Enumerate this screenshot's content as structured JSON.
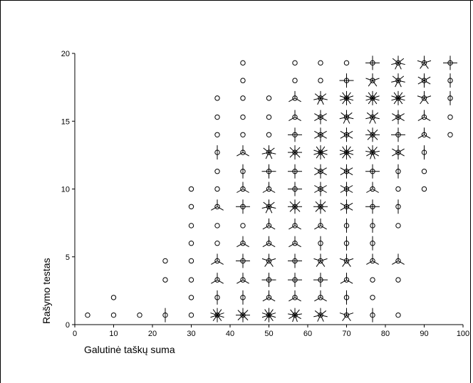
{
  "chart_data": {
    "type": "scatter",
    "title": "",
    "xlabel": "Galutinė taškų suma",
    "ylabel": "Rašymo testas",
    "xlim": [
      0,
      100
    ],
    "ylim": [
      0,
      20
    ],
    "x_ticks": [
      0,
      10,
      20,
      30,
      40,
      50,
      60,
      70,
      80,
      90,
      100
    ],
    "y_ticks": [
      0,
      5,
      10,
      15,
      20
    ],
    "grid": false,
    "legend": "none",
    "marker_style": "sunflower",
    "marker_note": "each open circle is a point; each petal line adds one more observation",
    "color": "#000000",
    "points": [
      {
        "x": 3.3,
        "y": 0.7,
        "n": 1
      },
      {
        "x": 10,
        "y": 0.7,
        "n": 1
      },
      {
        "x": 16.7,
        "y": 0.7,
        "n": 1
      },
      {
        "x": 23.3,
        "y": 0.7,
        "n": 2
      },
      {
        "x": 30,
        "y": 0.7,
        "n": 1
      },
      {
        "x": 36.7,
        "y": 0.7,
        "n": 10
      },
      {
        "x": 43.3,
        "y": 0.7,
        "n": 8
      },
      {
        "x": 50,
        "y": 0.7,
        "n": 10
      },
      {
        "x": 56.7,
        "y": 0.7,
        "n": 9
      },
      {
        "x": 63.3,
        "y": 0.7,
        "n": 7
      },
      {
        "x": 70,
        "y": 0.7,
        "n": 5
      },
      {
        "x": 76.7,
        "y": 0.7,
        "n": 2
      },
      {
        "x": 83.3,
        "y": 0.7,
        "n": 1
      },
      {
        "x": 10,
        "y": 2,
        "n": 1
      },
      {
        "x": 30,
        "y": 2,
        "n": 1
      },
      {
        "x": 36.7,
        "y": 2,
        "n": 2
      },
      {
        "x": 43.3,
        "y": 2,
        "n": 2
      },
      {
        "x": 50,
        "y": 2,
        "n": 3
      },
      {
        "x": 56.7,
        "y": 2,
        "n": 3
      },
      {
        "x": 63.3,
        "y": 2,
        "n": 3
      },
      {
        "x": 70,
        "y": 2,
        "n": 2
      },
      {
        "x": 76.7,
        "y": 2,
        "n": 1
      },
      {
        "x": 23.3,
        "y": 3.3,
        "n": 1
      },
      {
        "x": 30,
        "y": 3.3,
        "n": 1
      },
      {
        "x": 36.7,
        "y": 3.3,
        "n": 3
      },
      {
        "x": 43.3,
        "y": 3.3,
        "n": 3
      },
      {
        "x": 50,
        "y": 3.3,
        "n": 4
      },
      {
        "x": 56.7,
        "y": 3.3,
        "n": 4
      },
      {
        "x": 63.3,
        "y": 3.3,
        "n": 4
      },
      {
        "x": 70,
        "y": 3.3,
        "n": 3
      },
      {
        "x": 76.7,
        "y": 3.3,
        "n": 1
      },
      {
        "x": 83.3,
        "y": 3.3,
        "n": 1
      },
      {
        "x": 23.3,
        "y": 4.7,
        "n": 1
      },
      {
        "x": 30,
        "y": 4.7,
        "n": 1
      },
      {
        "x": 36.7,
        "y": 4.7,
        "n": 3
      },
      {
        "x": 43.3,
        "y": 4.7,
        "n": 4
      },
      {
        "x": 50,
        "y": 4.7,
        "n": 5
      },
      {
        "x": 56.7,
        "y": 4.7,
        "n": 4
      },
      {
        "x": 63.3,
        "y": 4.7,
        "n": 5
      },
      {
        "x": 70,
        "y": 4.7,
        "n": 5
      },
      {
        "x": 76.7,
        "y": 4.7,
        "n": 3
      },
      {
        "x": 83.3,
        "y": 4.7,
        "n": 3
      },
      {
        "x": 30,
        "y": 6,
        "n": 1
      },
      {
        "x": 36.7,
        "y": 6,
        "n": 1
      },
      {
        "x": 43.3,
        "y": 6,
        "n": 3
      },
      {
        "x": 50,
        "y": 6,
        "n": 3
      },
      {
        "x": 56.7,
        "y": 6,
        "n": 3
      },
      {
        "x": 63.3,
        "y": 6,
        "n": 2
      },
      {
        "x": 70,
        "y": 6,
        "n": 2
      },
      {
        "x": 76.7,
        "y": 6,
        "n": 2
      },
      {
        "x": 30,
        "y": 7.3,
        "n": 1
      },
      {
        "x": 36.7,
        "y": 7.3,
        "n": 1
      },
      {
        "x": 43.3,
        "y": 7.3,
        "n": 1
      },
      {
        "x": 50,
        "y": 7.3,
        "n": 3
      },
      {
        "x": 56.7,
        "y": 7.3,
        "n": 3
      },
      {
        "x": 63.3,
        "y": 7.3,
        "n": 3
      },
      {
        "x": 70,
        "y": 7.3,
        "n": 2
      },
      {
        "x": 76.7,
        "y": 7.3,
        "n": 2
      },
      {
        "x": 83.3,
        "y": 7.3,
        "n": 1
      },
      {
        "x": 30,
        "y": 8.7,
        "n": 1
      },
      {
        "x": 36.7,
        "y": 8.7,
        "n": 3
      },
      {
        "x": 43.3,
        "y": 8.7,
        "n": 4
      },
      {
        "x": 50,
        "y": 8.7,
        "n": 7
      },
      {
        "x": 56.7,
        "y": 8.7,
        "n": 8
      },
      {
        "x": 63.3,
        "y": 8.7,
        "n": 8
      },
      {
        "x": 70,
        "y": 8.7,
        "n": 6
      },
      {
        "x": 76.7,
        "y": 8.7,
        "n": 4
      },
      {
        "x": 83.3,
        "y": 8.7,
        "n": 2
      },
      {
        "x": 30,
        "y": 10,
        "n": 1
      },
      {
        "x": 36.7,
        "y": 10,
        "n": 1
      },
      {
        "x": 43.3,
        "y": 10,
        "n": 3
      },
      {
        "x": 50,
        "y": 10,
        "n": 3
      },
      {
        "x": 56.7,
        "y": 10,
        "n": 4
      },
      {
        "x": 63.3,
        "y": 10,
        "n": 6
      },
      {
        "x": 70,
        "y": 10,
        "n": 6
      },
      {
        "x": 76.7,
        "y": 10,
        "n": 3
      },
      {
        "x": 83.3,
        "y": 10,
        "n": 1
      },
      {
        "x": 90,
        "y": 10,
        "n": 1
      },
      {
        "x": 36.7,
        "y": 11.3,
        "n": 1
      },
      {
        "x": 43.3,
        "y": 11.3,
        "n": 2
      },
      {
        "x": 50,
        "y": 11.3,
        "n": 4
      },
      {
        "x": 56.7,
        "y": 11.3,
        "n": 4
      },
      {
        "x": 63.3,
        "y": 11.3,
        "n": 6
      },
      {
        "x": 70,
        "y": 11.3,
        "n": 6
      },
      {
        "x": 76.7,
        "y": 11.3,
        "n": 4
      },
      {
        "x": 83.3,
        "y": 11.3,
        "n": 2
      },
      {
        "x": 90,
        "y": 11.3,
        "n": 1
      },
      {
        "x": 36.7,
        "y": 12.7,
        "n": 2
      },
      {
        "x": 43.3,
        "y": 12.7,
        "n": 3
      },
      {
        "x": 50,
        "y": 12.7,
        "n": 7
      },
      {
        "x": 56.7,
        "y": 12.7,
        "n": 8
      },
      {
        "x": 63.3,
        "y": 12.7,
        "n": 10
      },
      {
        "x": 70,
        "y": 12.7,
        "n": 10
      },
      {
        "x": 76.7,
        "y": 12.7,
        "n": 9
      },
      {
        "x": 83.3,
        "y": 12.7,
        "n": 6
      },
      {
        "x": 90,
        "y": 12.7,
        "n": 2
      },
      {
        "x": 36.7,
        "y": 14,
        "n": 1
      },
      {
        "x": 43.3,
        "y": 14,
        "n": 1
      },
      {
        "x": 50,
        "y": 14,
        "n": 1
      },
      {
        "x": 56.7,
        "y": 14,
        "n": 4
      },
      {
        "x": 63.3,
        "y": 14,
        "n": 6
      },
      {
        "x": 70,
        "y": 14,
        "n": 6
      },
      {
        "x": 76.7,
        "y": 14,
        "n": 8
      },
      {
        "x": 83.3,
        "y": 14,
        "n": 4
      },
      {
        "x": 90,
        "y": 14,
        "n": 3
      },
      {
        "x": 96.7,
        "y": 14,
        "n": 1
      },
      {
        "x": 36.7,
        "y": 15.3,
        "n": 1
      },
      {
        "x": 43.3,
        "y": 15.3,
        "n": 1
      },
      {
        "x": 50,
        "y": 15.3,
        "n": 1
      },
      {
        "x": 56.7,
        "y": 15.3,
        "n": 3
      },
      {
        "x": 63.3,
        "y": 15.3,
        "n": 6
      },
      {
        "x": 70,
        "y": 15.3,
        "n": 7
      },
      {
        "x": 76.7,
        "y": 15.3,
        "n": 7
      },
      {
        "x": 83.3,
        "y": 15.3,
        "n": 6
      },
      {
        "x": 90,
        "y": 15.3,
        "n": 3
      },
      {
        "x": 96.7,
        "y": 15.3,
        "n": 1
      },
      {
        "x": 36.7,
        "y": 16.7,
        "n": 1
      },
      {
        "x": 43.3,
        "y": 16.7,
        "n": 1
      },
      {
        "x": 50,
        "y": 16.7,
        "n": 1
      },
      {
        "x": 56.7,
        "y": 16.7,
        "n": 3
      },
      {
        "x": 63.3,
        "y": 16.7,
        "n": 7
      },
      {
        "x": 70,
        "y": 16.7,
        "n": 10
      },
      {
        "x": 76.7,
        "y": 16.7,
        "n": 10
      },
      {
        "x": 83.3,
        "y": 16.7,
        "n": 10
      },
      {
        "x": 90,
        "y": 16.7,
        "n": 5
      },
      {
        "x": 96.7,
        "y": 16.7,
        "n": 2
      },
      {
        "x": 43.3,
        "y": 18,
        "n": 1
      },
      {
        "x": 56.7,
        "y": 18,
        "n": 1
      },
      {
        "x": 63.3,
        "y": 18,
        "n": 1
      },
      {
        "x": 70,
        "y": 18,
        "n": 4
      },
      {
        "x": 76.7,
        "y": 18,
        "n": 5
      },
      {
        "x": 83.3,
        "y": 18,
        "n": 7
      },
      {
        "x": 90,
        "y": 18,
        "n": 6
      },
      {
        "x": 96.7,
        "y": 18,
        "n": 2
      },
      {
        "x": 43.3,
        "y": 19.3,
        "n": 1
      },
      {
        "x": 56.7,
        "y": 19.3,
        "n": 1
      },
      {
        "x": 63.3,
        "y": 19.3,
        "n": 1
      },
      {
        "x": 70,
        "y": 19.3,
        "n": 1
      },
      {
        "x": 76.7,
        "y": 19.3,
        "n": 4
      },
      {
        "x": 83.3,
        "y": 19.3,
        "n": 7
      },
      {
        "x": 90,
        "y": 19.3,
        "n": 5
      },
      {
        "x": 96.7,
        "y": 19.3,
        "n": 4
      }
    ]
  }
}
